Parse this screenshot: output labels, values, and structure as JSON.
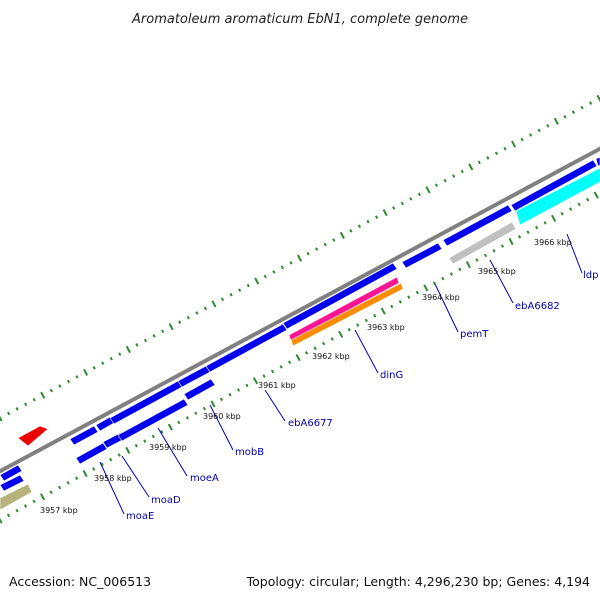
{
  "title": "Aromatoleum aromaticum EbN1, complete genome",
  "footer": {
    "accession": "Accession: NC_006513",
    "summary": "Topology: circular; Length: 4,296,230 bp; Genes: 4,194"
  },
  "colors": {
    "backbone": "#808080",
    "tick": "#2e8b2e",
    "gene_label": "#0000aa",
    "label_line": "#0000cc",
    "cds": "#0000ee",
    "other_red": "#ee0000",
    "other_olive": "#b5b27c",
    "other_pink": "#ff1493",
    "other_orange": "#ff8c00",
    "other_gray": "#c0c0c0",
    "other_cyan": "#00ffff"
  },
  "tick_labels": [
    "3957 kbp",
    "3958 kbp",
    "3959 kbp",
    "3960 kbp",
    "3961 kbp",
    "3962 kbp",
    "3963 kbp",
    "3964 kbp",
    "3965 kbp",
    "3966 kbp"
  ],
  "gene_labels": [
    "moaE",
    "moaD",
    "moeA",
    "mobB",
    "ebA6677",
    "dinG",
    "pemT",
    "ebA6682",
    "ldp"
  ],
  "features": [
    {
      "name": "cds-top-1",
      "track": "top",
      "color": "cds"
    },
    {
      "name": "cds-top-2",
      "track": "top",
      "color": "cds"
    },
    {
      "name": "cds-top-3",
      "track": "top",
      "color": "cds"
    },
    {
      "name": "cds-top-4",
      "track": "top",
      "color": "cds"
    },
    {
      "name": "cds-top-5",
      "track": "top",
      "color": "cds"
    },
    {
      "name": "cds-top-6",
      "track": "top",
      "color": "cds"
    },
    {
      "name": "cds-top-7",
      "track": "top",
      "color": "cds"
    },
    {
      "name": "cds-top-8",
      "track": "top",
      "color": "cds"
    },
    {
      "name": "cds-top-9",
      "track": "top",
      "color": "cds"
    },
    {
      "name": "cds-top-10",
      "track": "top",
      "color": "cds"
    },
    {
      "name": "cds-top-11",
      "track": "top",
      "color": "cds"
    },
    {
      "name": "cds-top-12",
      "track": "top",
      "color": "cds"
    },
    {
      "name": "cds-bottom-1",
      "track": "bottom",
      "color": "cds"
    },
    {
      "name": "cds-bottom-2",
      "track": "bottom",
      "color": "cds"
    },
    {
      "name": "cds-bottom-3",
      "track": "bottom",
      "color": "cds"
    },
    {
      "name": "cds-bottom-4",
      "track": "bottom",
      "color": "cds"
    },
    {
      "name": "feature-pink",
      "track": "bottom",
      "color": "other_pink"
    },
    {
      "name": "feature-orange",
      "track": "bottom",
      "color": "other_orange"
    },
    {
      "name": "feature-gray",
      "track": "bottom",
      "color": "other_gray"
    },
    {
      "name": "feature-cyan",
      "track": "bottom",
      "color": "other_cyan"
    },
    {
      "name": "feature-red",
      "track": "outer",
      "color": "other_red"
    },
    {
      "name": "feature-olive",
      "track": "bottom",
      "color": "other_olive"
    }
  ]
}
